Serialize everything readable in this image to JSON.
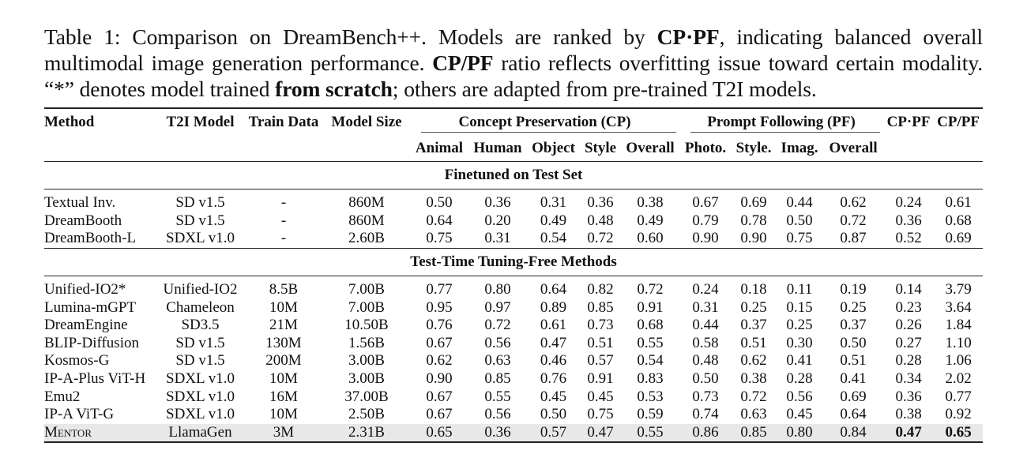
{
  "caption": {
    "prefix": "Table 1: Comparison on DreamBench++. Models are ranked by ",
    "b1": "CP·PF",
    "mid1": ", indicating balanced overall multimodal image generation performance. ",
    "b2": "CP/PF",
    "mid2": " ratio reflects overfitting issue toward certain modality. “*” denotes model trained ",
    "b3": "from scratch",
    "suffix": "; others are adapted from pre-trained T2I models."
  },
  "header": {
    "method": "Method",
    "t2i": "T2I Model",
    "train": "Train Data",
    "size": "Model Size",
    "cp_group": "Concept Preservation (CP)",
    "pf_group": "Prompt Following (PF)",
    "cpxpf": "CP·PF",
    "cpdivpf": "CP/PF",
    "cp_cols": [
      "Animal",
      "Human",
      "Object",
      "Style",
      "Overall"
    ],
    "pf_cols": [
      "Photo.",
      "Style.",
      "Imag.",
      "Overall"
    ]
  },
  "sections": [
    {
      "title": "Finetuned on Test Set",
      "rows": [
        [
          "Textual Inv.",
          "SD v1.5",
          "-",
          "860M",
          "0.50",
          "0.36",
          "0.31",
          "0.36",
          "0.38",
          "0.67",
          "0.69",
          "0.44",
          "0.62",
          "0.24",
          "0.61"
        ],
        [
          "DreamBooth",
          "SD v1.5",
          "-",
          "860M",
          "0.64",
          "0.20",
          "0.49",
          "0.48",
          "0.49",
          "0.79",
          "0.78",
          "0.50",
          "0.72",
          "0.36",
          "0.68"
        ],
        [
          "DreamBooth-L",
          "SDXL v1.0",
          "-",
          "2.60B",
          "0.75",
          "0.31",
          "0.54",
          "0.72",
          "0.60",
          "0.90",
          "0.90",
          "0.75",
          "0.87",
          "0.52",
          "0.69"
        ]
      ]
    },
    {
      "title": "Test-Time Tuning-Free Methods",
      "rows": [
        [
          "Unified-IO2*",
          "Unified-IO2",
          "8.5B",
          "7.00B",
          "0.77",
          "0.80",
          "0.64",
          "0.82",
          "0.72",
          "0.24",
          "0.18",
          "0.11",
          "0.19",
          "0.14",
          "3.79"
        ],
        [
          "Lumina-mGPT",
          "Chameleon",
          "10M",
          "7.00B",
          "0.95",
          "0.97",
          "0.89",
          "0.85",
          "0.91",
          "0.31",
          "0.25",
          "0.15",
          "0.25",
          "0.23",
          "3.64"
        ],
        [
          "DreamEngine",
          "SD3.5",
          "21M",
          "10.50B",
          "0.76",
          "0.72",
          "0.61",
          "0.73",
          "0.68",
          "0.44",
          "0.37",
          "0.25",
          "0.37",
          "0.26",
          "1.84"
        ],
        [
          "BLIP-Diffusion",
          "SD v1.5",
          "130M",
          "1.56B",
          "0.67",
          "0.56",
          "0.47",
          "0.51",
          "0.55",
          "0.58",
          "0.51",
          "0.30",
          "0.50",
          "0.27",
          "1.10"
        ],
        [
          "Kosmos-G",
          "SD v1.5",
          "200M",
          "3.00B",
          "0.62",
          "0.63",
          "0.46",
          "0.57",
          "0.54",
          "0.48",
          "0.62",
          "0.41",
          "0.51",
          "0.28",
          "1.06"
        ],
        [
          "IP-A-Plus ViT-H",
          "SDXL v1.0",
          "10M",
          "3.00B",
          "0.90",
          "0.85",
          "0.76",
          "0.91",
          "0.83",
          "0.50",
          "0.38",
          "0.28",
          "0.41",
          "0.34",
          "2.02"
        ],
        [
          "Emu2",
          "SDXL v1.0",
          "16M",
          "37.00B",
          "0.67",
          "0.55",
          "0.45",
          "0.45",
          "0.53",
          "0.73",
          "0.72",
          "0.56",
          "0.69",
          "0.36",
          "0.77"
        ],
        [
          "IP-A ViT-G",
          "SDXL v1.0",
          "10M",
          "2.50B",
          "0.67",
          "0.56",
          "0.50",
          "0.75",
          "0.59",
          "0.74",
          "0.63",
          "0.45",
          "0.64",
          "0.38",
          "0.92"
        ],
        [
          "Mentor",
          "LlamaGen",
          "3M",
          "2.31B",
          "0.65",
          "0.36",
          "0.57",
          "0.47",
          "0.55",
          "0.86",
          "0.85",
          "0.80",
          "0.84",
          "0.47",
          "0.65"
        ]
      ]
    }
  ]
}
